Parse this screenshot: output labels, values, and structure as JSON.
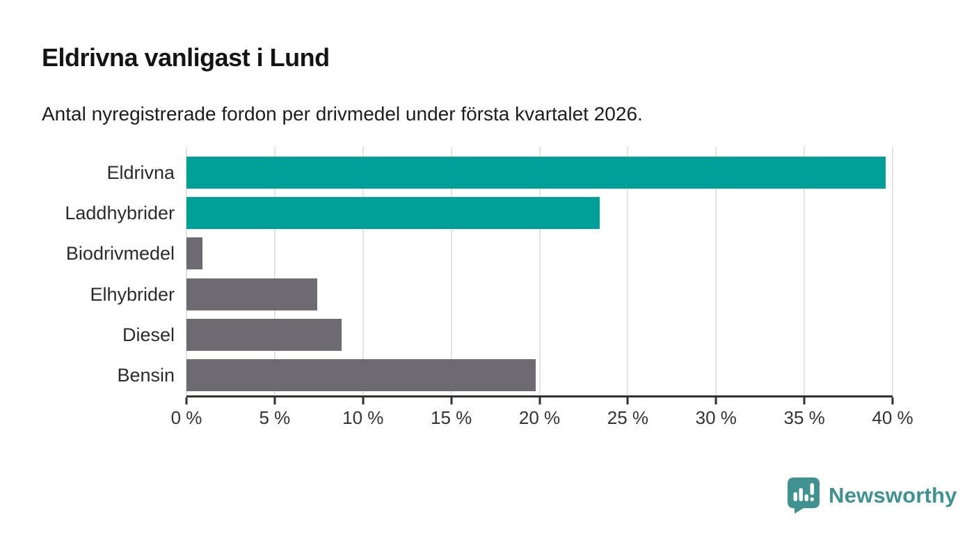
{
  "header": {
    "title": "Eldrivna vanligast i Lund",
    "subtitle": "Antal nyregistrerade fordon per drivmedel under första kvartalet 2026."
  },
  "chart_data": {
    "type": "bar",
    "orientation": "horizontal",
    "title": "Eldrivna vanligast i Lund",
    "subtitle": "Antal nyregistrerade fordon per drivmedel under första kvartalet 2026.",
    "categories": [
      "Eldrivna",
      "Laddhybrider",
      "Biodrivmedel",
      "Elhybrider",
      "Diesel",
      "Bensin"
    ],
    "values": [
      39.6,
      23.4,
      0.9,
      7.4,
      8.8,
      19.8
    ],
    "unit": "%",
    "bar_colors": [
      "#00a099",
      "#00a099",
      "#6d6a70",
      "#6d6a70",
      "#6d6a70",
      "#6d6a70"
    ],
    "xlim": [
      0,
      40
    ],
    "x_ticks": [
      0,
      5,
      10,
      15,
      20,
      25,
      30,
      35,
      40
    ],
    "x_tick_labels": [
      "0 %",
      "5 %",
      "10 %",
      "15 %",
      "20 %",
      "25 %",
      "30 %",
      "35 %",
      "40 %"
    ],
    "grid": true,
    "legend": "none"
  },
  "colors": {
    "accent_teal": "#00a099",
    "neutral_gray": "#6d6a70",
    "axis": "#303030",
    "gridline": "#e3e3e3",
    "title_text": "#141414",
    "label_text": "#2b2b2b",
    "logo_teal": "#3f928f"
  },
  "footer": {
    "brand": "Newsworthy",
    "logo_icon": "newsworthy-speech-bubble-bar-chart-icon"
  }
}
